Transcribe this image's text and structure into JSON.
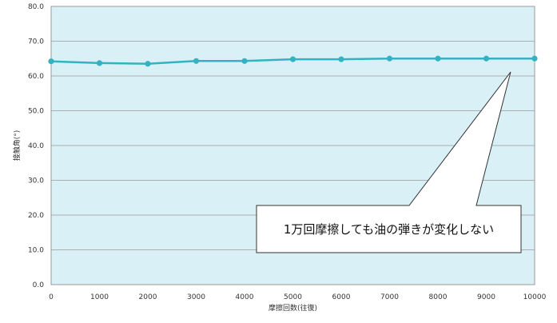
{
  "chart_data": {
    "type": "line",
    "title": "",
    "xlabel": "摩擦回数(往復)",
    "ylabel": "接触角(°)",
    "xlim": [
      0,
      10000
    ],
    "ylim": [
      0,
      80
    ],
    "x_ticks": [
      "0",
      "1000",
      "2000",
      "3000",
      "4000",
      "5000",
      "6000",
      "7000",
      "8000",
      "9000",
      "10000"
    ],
    "y_ticks": [
      "0.0",
      "10.0",
      "20.0",
      "30.0",
      "40.0",
      "50.0",
      "60.0",
      "70.0",
      "80.0"
    ],
    "grid": true,
    "series": [
      {
        "x": [
          0,
          1000,
          2000,
          3000,
          4000,
          5000,
          6000,
          7000,
          8000,
          9000,
          10000
        ],
        "values": [
          64.2,
          63.7,
          63.5,
          64.3,
          64.3,
          64.8,
          64.8,
          65.0,
          65.0,
          65.0,
          65.0
        ]
      }
    ],
    "annotation": "1万回摩擦しても油の弾きが変化しない",
    "colors": {
      "plot_background": "#d9f1f6",
      "line": "#34b2c2",
      "grid": "#9a9a9a"
    }
  }
}
